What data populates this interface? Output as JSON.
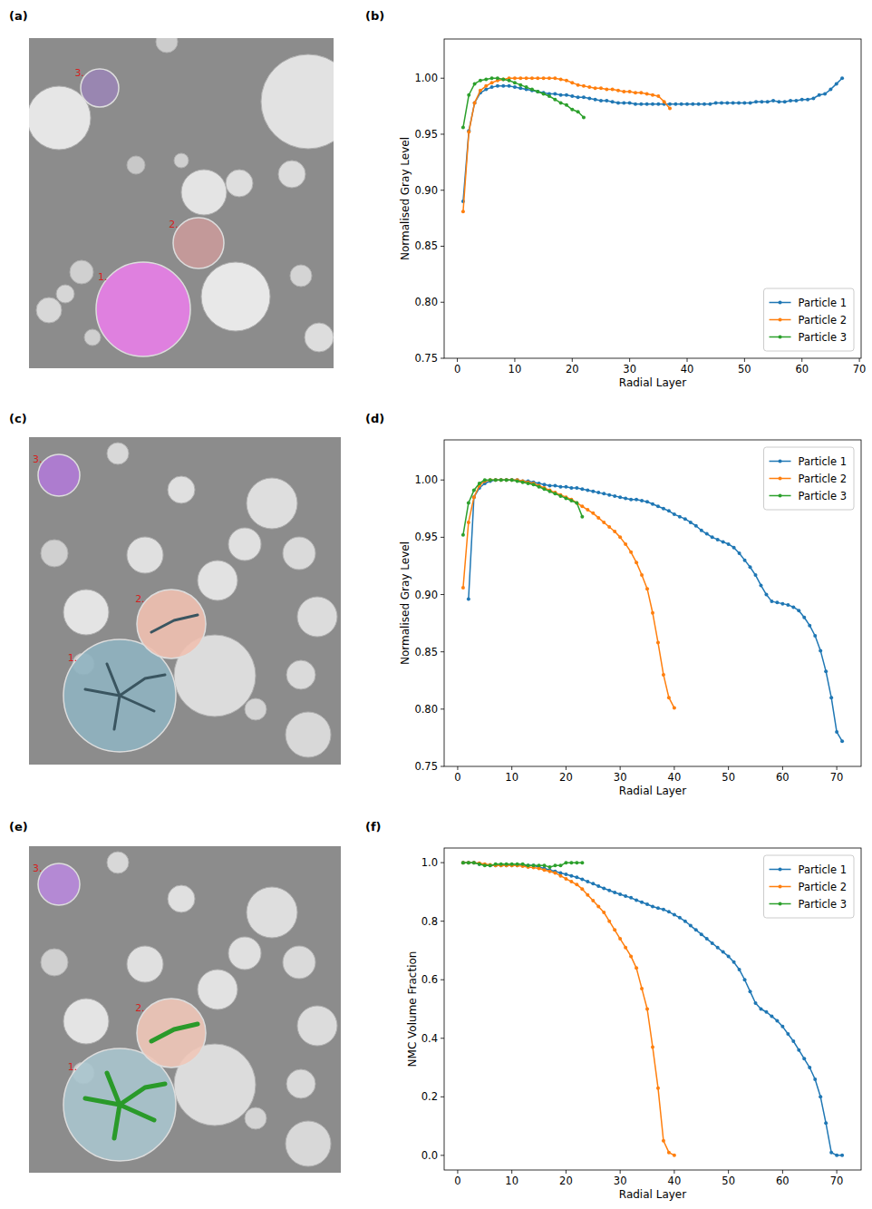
{
  "images": [
    {
      "label": "(a)",
      "particles": [
        "1.",
        "2.",
        "3."
      ]
    },
    {
      "label": "(c)",
      "particles": [
        "1.",
        "2.",
        "3."
      ]
    },
    {
      "label": "(e)",
      "particles": [
        "1.",
        "2.",
        "3."
      ]
    }
  ],
  "chart_data": [
    {
      "type": "line",
      "panel_label": "(b)",
      "xlabel": "Radial Layer",
      "ylabel": "Normalised Gray Level",
      "xlim": [
        -2.3,
        70.3
      ],
      "ylim": [
        0.75,
        1.035
      ],
      "xticks": [
        0,
        10,
        20,
        30,
        40,
        50,
        60,
        70
      ],
      "yticks": [
        0.75,
        {
          "value": 0.8,
          "label": "0.80"
        },
        0.85,
        {
          "value": 0.9,
          "label": "0.90"
        },
        0.95,
        {
          "value": 1.0,
          "label": "1.00"
        }
      ],
      "legend": "lower right",
      "marker": "dot",
      "series": [
        {
          "name": "Particle 1",
          "color": "#1f77b4",
          "x": [
            1,
            2,
            3,
            4,
            5,
            6,
            7,
            8,
            9,
            10,
            11,
            12,
            13,
            14,
            15,
            16,
            17,
            18,
            19,
            20,
            21,
            22,
            23,
            24,
            25,
            26,
            27,
            28,
            29,
            30,
            31,
            32,
            33,
            34,
            35,
            36,
            37,
            38,
            39,
            40,
            41,
            42,
            43,
            44,
            45,
            46,
            47,
            48,
            49,
            50,
            51,
            52,
            53,
            54,
            55,
            56,
            57,
            58,
            59,
            60,
            61,
            62,
            63,
            64,
            65,
            66,
            67
          ],
          "values": [
            0.89,
            0.953,
            0.978,
            0.987,
            0.99,
            0.992,
            0.993,
            0.993,
            0.993,
            0.992,
            0.991,
            0.99,
            0.989,
            0.988,
            0.987,
            0.986,
            0.986,
            0.985,
            0.985,
            0.984,
            0.983,
            0.983,
            0.982,
            0.981,
            0.98,
            0.98,
            0.979,
            0.978,
            0.978,
            0.978,
            0.977,
            0.977,
            0.977,
            0.977,
            0.977,
            0.977,
            0.977,
            0.977,
            0.977,
            0.977,
            0.977,
            0.977,
            0.977,
            0.977,
            0.978,
            0.978,
            0.978,
            0.978,
            0.978,
            0.978,
            0.978,
            0.979,
            0.979,
            0.979,
            0.98,
            0.979,
            0.979,
            0.98,
            0.98,
            0.981,
            0.981,
            0.982,
            0.985,
            0.986,
            0.99,
            0.995,
            1.0
          ]
        },
        {
          "name": "Particle 2",
          "color": "#ff7f0e",
          "x": [
            1,
            2,
            3,
            4,
            5,
            6,
            7,
            8,
            9,
            10,
            11,
            12,
            13,
            14,
            15,
            16,
            17,
            18,
            19,
            20,
            21,
            22,
            23,
            24,
            25,
            26,
            27,
            28,
            29,
            30,
            31,
            32,
            33,
            34,
            35,
            36,
            37
          ],
          "values": [
            0.881,
            0.952,
            0.978,
            0.989,
            0.993,
            0.996,
            0.998,
            0.999,
            1.0,
            1.0,
            1.0,
            1.0,
            1.0,
            1.0,
            1.0,
            1.0,
            1.0,
            0.999,
            0.998,
            0.996,
            0.994,
            0.993,
            0.992,
            0.991,
            0.991,
            0.99,
            0.99,
            0.989,
            0.988,
            0.988,
            0.987,
            0.987,
            0.986,
            0.985,
            0.984,
            0.979,
            0.973
          ]
        },
        {
          "name": "Particle 3",
          "color": "#2ca02c",
          "x": [
            1,
            2,
            3,
            4,
            5,
            6,
            7,
            8,
            9,
            10,
            11,
            12,
            13,
            14,
            15,
            16,
            17,
            18,
            19,
            20,
            21,
            22
          ],
          "values": [
            0.956,
            0.985,
            0.995,
            0.998,
            0.999,
            1.0,
            1.0,
            0.999,
            0.998,
            0.996,
            0.994,
            0.992,
            0.99,
            0.988,
            0.986,
            0.984,
            0.981,
            0.978,
            0.976,
            0.972,
            0.97,
            0.965
          ]
        }
      ]
    },
    {
      "type": "line",
      "panel_label": "(d)",
      "xlabel": "Radial Layer",
      "ylabel": "Normalised Gray Level",
      "xlim": [
        -2.5,
        74.5
      ],
      "ylim": [
        0.75,
        1.035
      ],
      "xticks": [
        0,
        10,
        20,
        30,
        40,
        50,
        60,
        70
      ],
      "yticks": [
        0.75,
        {
          "value": 0.8,
          "label": "0.80"
        },
        0.85,
        {
          "value": 0.9,
          "label": "0.90"
        },
        0.95,
        {
          "value": 1.0,
          "label": "1.00"
        }
      ],
      "legend": "upper right",
      "marker": "dot",
      "series": [
        {
          "name": "Particle 1",
          "color": "#1f77b4",
          "x": [
            2,
            3,
            4,
            5,
            6,
            7,
            8,
            9,
            10,
            11,
            12,
            13,
            14,
            15,
            16,
            17,
            18,
            19,
            20,
            21,
            22,
            23,
            24,
            25,
            26,
            27,
            28,
            29,
            30,
            31,
            32,
            33,
            34,
            35,
            36,
            37,
            38,
            39,
            40,
            41,
            42,
            43,
            44,
            45,
            46,
            47,
            48,
            49,
            50,
            51,
            52,
            53,
            54,
            55,
            56,
            57,
            58,
            59,
            60,
            61,
            62,
            63,
            64,
            65,
            66,
            67,
            68,
            69,
            70,
            71
          ],
          "values": [
            0.896,
            0.985,
            0.993,
            0.997,
            0.999,
            1.0,
            1.0,
            1.0,
            1.0,
            1.0,
            0.999,
            0.999,
            0.998,
            0.997,
            0.996,
            0.995,
            0.995,
            0.994,
            0.994,
            0.993,
            0.993,
            0.992,
            0.991,
            0.99,
            0.989,
            0.988,
            0.987,
            0.986,
            0.985,
            0.984,
            0.983,
            0.983,
            0.982,
            0.981,
            0.979,
            0.977,
            0.975,
            0.973,
            0.97,
            0.968,
            0.966,
            0.963,
            0.96,
            0.956,
            0.953,
            0.95,
            0.948,
            0.946,
            0.944,
            0.941,
            0.936,
            0.93,
            0.924,
            0.917,
            0.908,
            0.9,
            0.894,
            0.893,
            0.892,
            0.891,
            0.889,
            0.886,
            0.88,
            0.873,
            0.864,
            0.851,
            0.833,
            0.81,
            0.78,
            0.772
          ]
        },
        {
          "name": "Particle 2",
          "color": "#ff7f0e",
          "x": [
            1,
            2,
            3,
            4,
            5,
            6,
            7,
            8,
            9,
            10,
            11,
            12,
            13,
            14,
            15,
            16,
            17,
            18,
            19,
            20,
            21,
            22,
            23,
            24,
            25,
            26,
            27,
            28,
            29,
            30,
            31,
            32,
            33,
            34,
            35,
            36,
            37,
            38,
            39,
            40
          ],
          "values": [
            0.906,
            0.963,
            0.985,
            0.995,
            0.999,
            1.0,
            1.0,
            1.0,
            1.0,
            1.0,
            1.0,
            0.999,
            0.998,
            0.997,
            0.995,
            0.993,
            0.991,
            0.989,
            0.987,
            0.985,
            0.983,
            0.98,
            0.977,
            0.974,
            0.971,
            0.967,
            0.963,
            0.959,
            0.955,
            0.95,
            0.944,
            0.937,
            0.928,
            0.917,
            0.905,
            0.884,
            0.858,
            0.83,
            0.81,
            0.801
          ]
        },
        {
          "name": "Particle 3",
          "color": "#2ca02c",
          "x": [
            1,
            2,
            3,
            4,
            5,
            6,
            7,
            8,
            9,
            10,
            11,
            12,
            13,
            14,
            15,
            16,
            17,
            18,
            19,
            20,
            21,
            22,
            23
          ],
          "values": [
            0.952,
            0.98,
            0.991,
            0.997,
            1.0,
            1.0,
            1.0,
            1.0,
            1.0,
            1.0,
            0.999,
            0.998,
            0.997,
            0.996,
            0.994,
            0.992,
            0.99,
            0.988,
            0.986,
            0.984,
            0.982,
            0.98,
            0.968
          ]
        }
      ]
    },
    {
      "type": "line",
      "panel_label": "(f)",
      "xlabel": "Radial Layer",
      "ylabel": "NMC Volume Fraction",
      "xlim": [
        -2.5,
        74.5
      ],
      "ylim": [
        -0.05,
        1.05
      ],
      "xticks": [
        0,
        10,
        20,
        30,
        40,
        50,
        60,
        70
      ],
      "yticks": [
        {
          "value": 0,
          "label": "0.0"
        },
        0.2,
        0.4,
        0.6,
        0.8,
        {
          "value": 1.0,
          "label": "1.0"
        }
      ],
      "legend": "upper right",
      "marker": "dot",
      "series": [
        {
          "name": "Particle 1",
          "color": "#1f77b4",
          "x": [
            1,
            2,
            3,
            4,
            5,
            6,
            7,
            8,
            9,
            10,
            11,
            12,
            13,
            14,
            15,
            16,
            17,
            18,
            19,
            20,
            21,
            22,
            23,
            24,
            25,
            26,
            27,
            28,
            29,
            30,
            31,
            32,
            33,
            34,
            35,
            36,
            37,
            38,
            39,
            40,
            41,
            42,
            43,
            44,
            45,
            46,
            47,
            48,
            49,
            50,
            51,
            52,
            53,
            54,
            55,
            56,
            57,
            58,
            59,
            60,
            61,
            62,
            63,
            64,
            65,
            66,
            67,
            68,
            69,
            70,
            71
          ],
          "values": [
            1.0,
            1.0,
            1.0,
            0.995,
            0.993,
            0.99,
            0.99,
            0.99,
            0.99,
            0.99,
            0.99,
            0.99,
            0.99,
            0.99,
            0.985,
            0.98,
            0.975,
            0.97,
            0.965,
            0.96,
            0.955,
            0.95,
            0.943,
            0.935,
            0.928,
            0.92,
            0.912,
            0.905,
            0.898,
            0.892,
            0.886,
            0.88,
            0.872,
            0.865,
            0.858,
            0.85,
            0.845,
            0.84,
            0.832,
            0.822,
            0.812,
            0.8,
            0.785,
            0.77,
            0.755,
            0.74,
            0.725,
            0.71,
            0.695,
            0.68,
            0.66,
            0.635,
            0.6,
            0.56,
            0.52,
            0.5,
            0.49,
            0.475,
            0.46,
            0.44,
            0.415,
            0.39,
            0.36,
            0.33,
            0.3,
            0.26,
            0.2,
            0.11,
            0.01,
            0.0,
            0.0
          ]
        },
        {
          "name": "Particle 2",
          "color": "#ff7f0e",
          "x": [
            1,
            2,
            3,
            4,
            5,
            6,
            7,
            8,
            9,
            10,
            11,
            12,
            13,
            14,
            15,
            16,
            17,
            18,
            19,
            20,
            21,
            22,
            23,
            24,
            25,
            26,
            27,
            28,
            29,
            30,
            31,
            32,
            33,
            34,
            35,
            36,
            37,
            38,
            39,
            40
          ],
          "values": [
            1.0,
            1.0,
            1.0,
            0.998,
            0.995,
            0.993,
            0.99,
            0.99,
            0.99,
            0.99,
            0.99,
            0.988,
            0.985,
            0.983,
            0.98,
            0.975,
            0.97,
            0.965,
            0.955,
            0.945,
            0.935,
            0.925,
            0.91,
            0.89,
            0.87,
            0.85,
            0.83,
            0.8,
            0.77,
            0.74,
            0.71,
            0.68,
            0.64,
            0.57,
            0.5,
            0.37,
            0.23,
            0.05,
            0.01,
            0.0
          ]
        },
        {
          "name": "Particle 3",
          "color": "#2ca02c",
          "x": [
            1,
            2,
            3,
            4,
            5,
            6,
            7,
            8,
            9,
            10,
            11,
            12,
            13,
            14,
            15,
            16,
            17,
            18,
            19,
            20,
            21,
            22,
            23
          ],
          "values": [
            1.0,
            1.0,
            1.0,
            0.995,
            0.99,
            0.99,
            0.995,
            0.995,
            0.995,
            0.995,
            0.995,
            0.995,
            0.99,
            0.99,
            0.99,
            0.99,
            0.985,
            0.99,
            0.99,
            1.0,
            1.0,
            1.0,
            1.0
          ]
        }
      ]
    }
  ]
}
